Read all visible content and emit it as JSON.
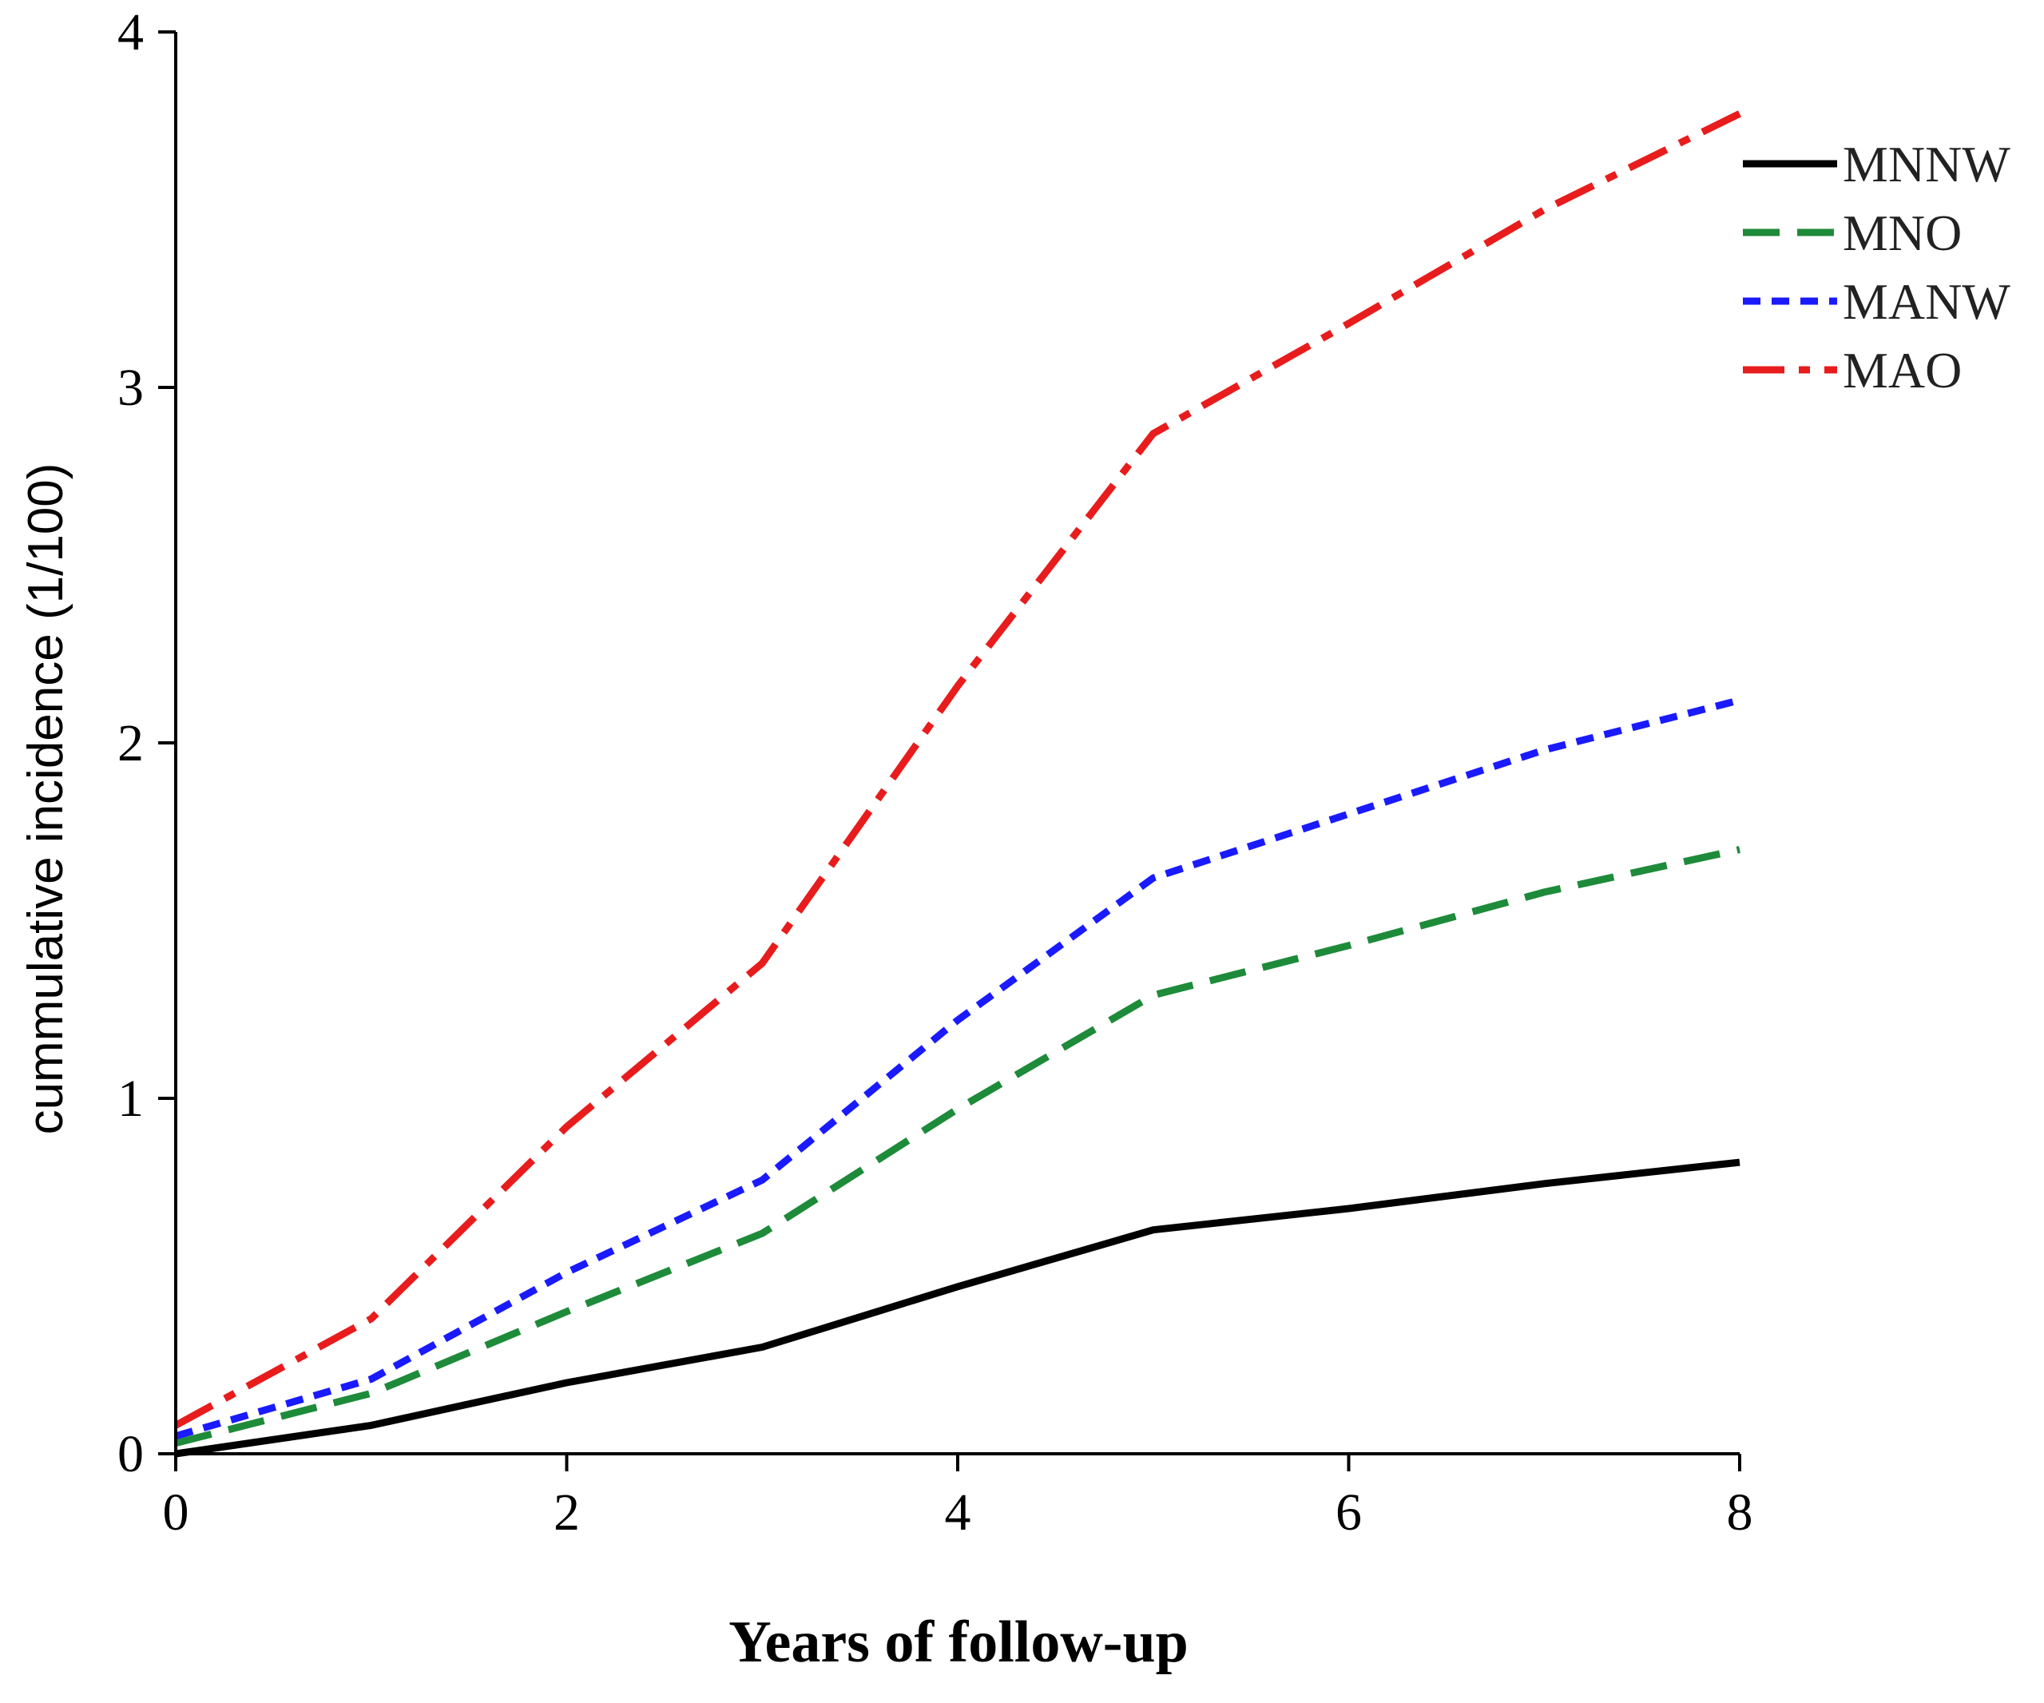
{
  "chart_data": {
    "type": "line",
    "title": "",
    "xlabel": "Years of follow-up",
    "ylabel": "cummulative incidence (1/100)",
    "xlim": [
      0,
      8
    ],
    "ylim": [
      0,
      4
    ],
    "xticks": [
      0,
      2,
      4,
      6,
      8
    ],
    "yticks": [
      0,
      1,
      2,
      3,
      4
    ],
    "grid": false,
    "legend_position": "top-right",
    "series": [
      {
        "name": "MNNW",
        "color": "#000000",
        "dash": "solid",
        "x": [
          0,
          1,
          2,
          3,
          4,
          5,
          6,
          7,
          8
        ],
        "y": [
          0.0,
          0.08,
          0.2,
          0.3,
          0.47,
          0.63,
          0.69,
          0.76,
          0.82
        ]
      },
      {
        "name": "MNO",
        "color": "#1e8b3a",
        "dash": "dashed",
        "x": [
          0,
          1,
          2,
          3,
          4,
          5,
          6,
          7,
          8
        ],
        "y": [
          0.03,
          0.17,
          0.4,
          0.62,
          0.97,
          1.29,
          1.43,
          1.58,
          1.7
        ]
      },
      {
        "name": "MANW",
        "color": "#1a1aff",
        "dash": "dotted",
        "x": [
          0,
          1,
          2,
          3,
          4,
          5,
          6,
          7,
          8
        ],
        "y": [
          0.05,
          0.21,
          0.51,
          0.77,
          1.22,
          1.62,
          1.8,
          1.98,
          2.12
        ]
      },
      {
        "name": "MAO",
        "color": "#e81c1c",
        "dash": "dashdot",
        "x": [
          0,
          1,
          2,
          3,
          4,
          5,
          6,
          7,
          8
        ],
        "y": [
          0.08,
          0.38,
          0.92,
          1.38,
          2.16,
          2.87,
          3.18,
          3.5,
          3.77
        ]
      }
    ]
  }
}
